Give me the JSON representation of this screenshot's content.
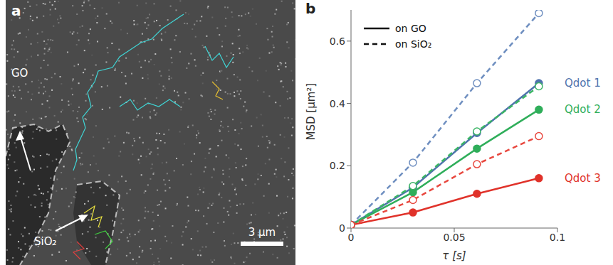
{
  "image_panel": {
    "label": "a",
    "regions": [
      "GO",
      "SiO₂"
    ],
    "scale_bar": "3 µm"
  },
  "chart_data": {
    "type": "line",
    "title": "b",
    "x_label": "τ [s]",
    "y_label": "MSD [µm²]",
    "x": [
      0,
      0.03,
      0.061,
      0.091
    ],
    "xlim": [
      0,
      0.1
    ],
    "xticks": [
      0,
      0.05,
      0.1
    ],
    "ylim": [
      0,
      0.7
    ],
    "yticks": [
      0,
      0.2,
      0.4,
      0.6
    ],
    "grid": false,
    "legend": "upper left",
    "series": [
      {
        "name": "Qdot 1",
        "group": "on GO",
        "color": "#4f73ad",
        "line_style": "solid",
        "marker": "filled",
        "values": [
          0.01,
          0.13,
          0.305,
          0.465
        ]
      },
      {
        "name": "Qdot 1",
        "group": "on SiO₂",
        "color": "#6f8fc0",
        "line_style": "dashed",
        "marker": "open",
        "values": [
          0.01,
          0.21,
          0.465,
          0.69
        ]
      },
      {
        "name": "Qdot 2",
        "group": "on GO",
        "color": "#2fae5a",
        "line_style": "solid",
        "marker": "filled",
        "values": [
          0.01,
          0.115,
          0.255,
          0.38
        ]
      },
      {
        "name": "Qdot 2",
        "group": "on SiO₂",
        "color": "#3bb565",
        "line_style": "dashed",
        "marker": "open",
        "values": [
          0.01,
          0.135,
          0.31,
          0.455
        ]
      },
      {
        "name": "Qdot 3",
        "group": "on GO",
        "color": "#e0322a",
        "line_style": "solid",
        "marker": "filled",
        "values": [
          0.01,
          0.05,
          0.11,
          0.16
        ]
      },
      {
        "name": "Qdot 3",
        "group": "on SiO₂",
        "color": "#e8483f",
        "line_style": "dashed",
        "marker": "open",
        "values": [
          0.01,
          0.09,
          0.205,
          0.295
        ]
      }
    ]
  }
}
